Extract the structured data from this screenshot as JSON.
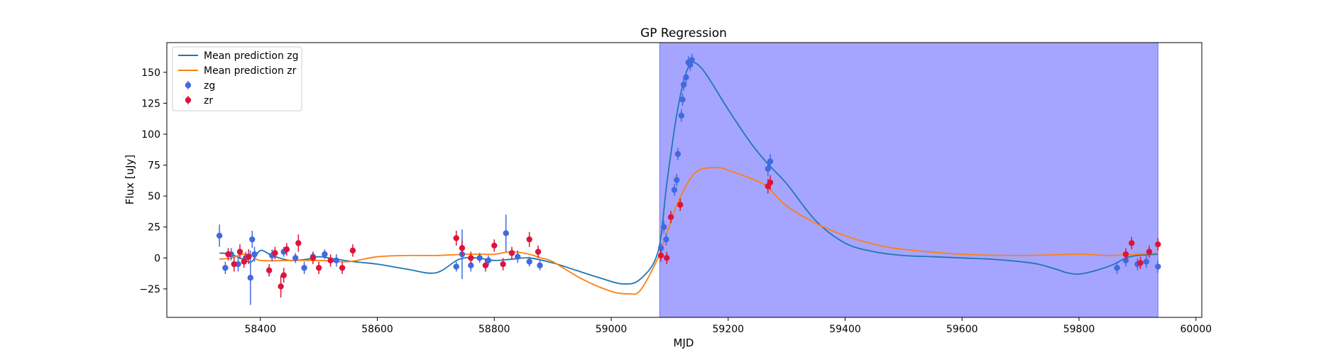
{
  "chart_data": {
    "type": "line",
    "title": "GP Regression",
    "xlabel": "MJD",
    "ylabel": "Flux [uJy]",
    "xlim": [
      58240,
      60010
    ],
    "ylim": [
      -48,
      174
    ],
    "xticks": [
      58400,
      58600,
      58800,
      59000,
      59200,
      59400,
      59600,
      59800,
      60000
    ],
    "yticks": [
      -25,
      0,
      25,
      50,
      75,
      100,
      125,
      150
    ],
    "grid": false,
    "legend_position": "top-left",
    "highlight_region": {
      "x_start": 59083,
      "x_end": 59935,
      "color": "#a5a5ff"
    },
    "colors": {
      "mean_zg": "#1f77b4",
      "mean_zr": "#ff7f0e",
      "points_zg": "#4169e1",
      "points_zr": "#dc143c"
    },
    "series": [
      {
        "name": "Mean prediction zg",
        "kind": "line",
        "x": [
          58330,
          58350,
          58370,
          58385,
          58400,
          58420,
          58450,
          58480,
          58500,
          58530,
          58560,
          58600,
          58650,
          58700,
          58740,
          58770,
          58800,
          58830,
          58860,
          58900,
          58940,
          58980,
          59020,
          59050,
          59080,
          59095,
          59110,
          59120,
          59130,
          59140,
          59160,
          59200,
          59240,
          59270,
          59300,
          59350,
          59400,
          59450,
          59500,
          59550,
          59600,
          59650,
          59700,
          59730,
          59760,
          59780,
          59800,
          59830,
          59860,
          59880,
          59900,
          59935
        ],
        "y": [
          4,
          3,
          -1,
          -3,
          6,
          2,
          -2,
          -1,
          1,
          -1,
          -3,
          -5,
          -9,
          -12,
          -1,
          0,
          -2,
          -1,
          0,
          -4,
          -10,
          -16,
          -21,
          -17,
          5,
          60,
          110,
          135,
          152,
          158,
          150,
          120,
          92,
          75,
          60,
          30,
          12,
          5,
          2,
          1,
          0,
          -1,
          -3,
          -5,
          -9,
          -12,
          -13,
          -10,
          -5,
          0,
          2,
          3
        ]
      },
      {
        "name": "Mean prediction zr",
        "kind": "line",
        "x": [
          58330,
          58350,
          58370,
          58385,
          58400,
          58450,
          58500,
          58550,
          58600,
          58650,
          58700,
          58750,
          58780,
          58800,
          58830,
          58860,
          58880,
          58900,
          58950,
          59000,
          59030,
          59050,
          59080,
          59095,
          59110,
          59130,
          59150,
          59180,
          59200,
          59250,
          59270,
          59300,
          59350,
          59400,
          59450,
          59500,
          59600,
          59700,
          59800,
          59850,
          59900,
          59935
        ],
        "y": [
          -1,
          0,
          3,
          2,
          -2,
          -2,
          -2,
          -3,
          1,
          2,
          2,
          3,
          3,
          3,
          5,
          3,
          0,
          -3,
          -17,
          -27,
          -29,
          -26,
          0,
          20,
          40,
          60,
          71,
          73,
          71,
          62,
          56,
          42,
          28,
          18,
          11,
          7,
          3,
          2,
          3,
          2,
          3,
          4
        ]
      },
      {
        "name": "zg",
        "kind": "errorbar",
        "points": [
          {
            "x": 58330,
            "y": 18,
            "e": 9
          },
          {
            "x": 58340,
            "y": -8,
            "e": 5
          },
          {
            "x": 58350,
            "y": 3,
            "e": 5
          },
          {
            "x": 58362,
            "y": -5,
            "e": 6
          },
          {
            "x": 58375,
            "y": 0,
            "e": 5
          },
          {
            "x": 58383,
            "y": -16,
            "e": 22
          },
          {
            "x": 58386,
            "y": 15,
            "e": 7
          },
          {
            "x": 58390,
            "y": 3,
            "e": 6
          },
          {
            "x": 58420,
            "y": 2,
            "e": 5
          },
          {
            "x": 58440,
            "y": 5,
            "e": 4
          },
          {
            "x": 58460,
            "y": 0,
            "e": 4
          },
          {
            "x": 58475,
            "y": -8,
            "e": 5
          },
          {
            "x": 58490,
            "y": 1,
            "e": 4
          },
          {
            "x": 58510,
            "y": 3,
            "e": 4
          },
          {
            "x": 58530,
            "y": -2,
            "e": 5
          },
          {
            "x": 58735,
            "y": -7,
            "e": 4
          },
          {
            "x": 58745,
            "y": 3,
            "e": 20
          },
          {
            "x": 58760,
            "y": -6,
            "e": 5
          },
          {
            "x": 58775,
            "y": 0,
            "e": 4
          },
          {
            "x": 58790,
            "y": -2,
            "e": 4
          },
          {
            "x": 58820,
            "y": 20,
            "e": 15
          },
          {
            "x": 58840,
            "y": 1,
            "e": 5
          },
          {
            "x": 58860,
            "y": -3,
            "e": 4
          },
          {
            "x": 58878,
            "y": -6,
            "e": 4
          },
          {
            "x": 59085,
            "y": 8,
            "e": 4
          },
          {
            "x": 59090,
            "y": 25,
            "e": 5
          },
          {
            "x": 59094,
            "y": 15,
            "e": 5
          },
          {
            "x": 59108,
            "y": 55,
            "e": 5
          },
          {
            "x": 59112,
            "y": 63,
            "e": 5
          },
          {
            "x": 59114,
            "y": 84,
            "e": 5
          },
          {
            "x": 59120,
            "y": 115,
            "e": 5
          },
          {
            "x": 59122,
            "y": 128,
            "e": 5
          },
          {
            "x": 59124,
            "y": 140,
            "e": 5
          },
          {
            "x": 59128,
            "y": 146,
            "e": 5
          },
          {
            "x": 59132,
            "y": 158,
            "e": 5
          },
          {
            "x": 59135,
            "y": 156,
            "e": 5
          },
          {
            "x": 59138,
            "y": 160,
            "e": 5
          },
          {
            "x": 59268,
            "y": 72,
            "e": 6
          },
          {
            "x": 59272,
            "y": 78,
            "e": 6
          },
          {
            "x": 59865,
            "y": -8,
            "e": 5
          },
          {
            "x": 59880,
            "y": -2,
            "e": 5
          },
          {
            "x": 59900,
            "y": -5,
            "e": 5
          },
          {
            "x": 59915,
            "y": -3,
            "e": 5
          },
          {
            "x": 59935,
            "y": -7,
            "e": 5
          }
        ]
      },
      {
        "name": "zr",
        "kind": "errorbar",
        "points": [
          {
            "x": 58345,
            "y": 3,
            "e": 5
          },
          {
            "x": 58355,
            "y": -5,
            "e": 6
          },
          {
            "x": 58365,
            "y": 5,
            "e": 6
          },
          {
            "x": 58372,
            "y": -3,
            "e": 5
          },
          {
            "x": 58380,
            "y": 1,
            "e": 6
          },
          {
            "x": 58415,
            "y": -10,
            "e": 5
          },
          {
            "x": 58425,
            "y": 4,
            "e": 5
          },
          {
            "x": 58435,
            "y": -23,
            "e": 9
          },
          {
            "x": 58440,
            "y": -14,
            "e": 6
          },
          {
            "x": 58445,
            "y": 7,
            "e": 5
          },
          {
            "x": 58465,
            "y": 12,
            "e": 7
          },
          {
            "x": 58490,
            "y": 0,
            "e": 5
          },
          {
            "x": 58500,
            "y": -8,
            "e": 5
          },
          {
            "x": 58520,
            "y": -2,
            "e": 5
          },
          {
            "x": 58540,
            "y": -8,
            "e": 5
          },
          {
            "x": 58558,
            "y": 6,
            "e": 5
          },
          {
            "x": 58735,
            "y": 16,
            "e": 6
          },
          {
            "x": 58745,
            "y": 8,
            "e": 6
          },
          {
            "x": 58760,
            "y": 0,
            "e": 5
          },
          {
            "x": 58785,
            "y": -6,
            "e": 5
          },
          {
            "x": 58800,
            "y": 10,
            "e": 5
          },
          {
            "x": 58815,
            "y": -5,
            "e": 5
          },
          {
            "x": 58830,
            "y": 4,
            "e": 5
          },
          {
            "x": 58860,
            "y": 15,
            "e": 6
          },
          {
            "x": 58875,
            "y": 5,
            "e": 5
          },
          {
            "x": 59085,
            "y": 2,
            "e": 5
          },
          {
            "x": 59095,
            "y": 0,
            "e": 5
          },
          {
            "x": 59102,
            "y": 33,
            "e": 5
          },
          {
            "x": 59118,
            "y": 43,
            "e": 5
          },
          {
            "x": 59268,
            "y": 58,
            "e": 6
          },
          {
            "x": 59272,
            "y": 61,
            "e": 6
          },
          {
            "x": 59880,
            "y": 3,
            "e": 5
          },
          {
            "x": 59890,
            "y": 12,
            "e": 5
          },
          {
            "x": 59905,
            "y": -4,
            "e": 5
          },
          {
            "x": 59920,
            "y": 5,
            "e": 5
          },
          {
            "x": 59935,
            "y": 11,
            "e": 5
          }
        ]
      }
    ]
  }
}
